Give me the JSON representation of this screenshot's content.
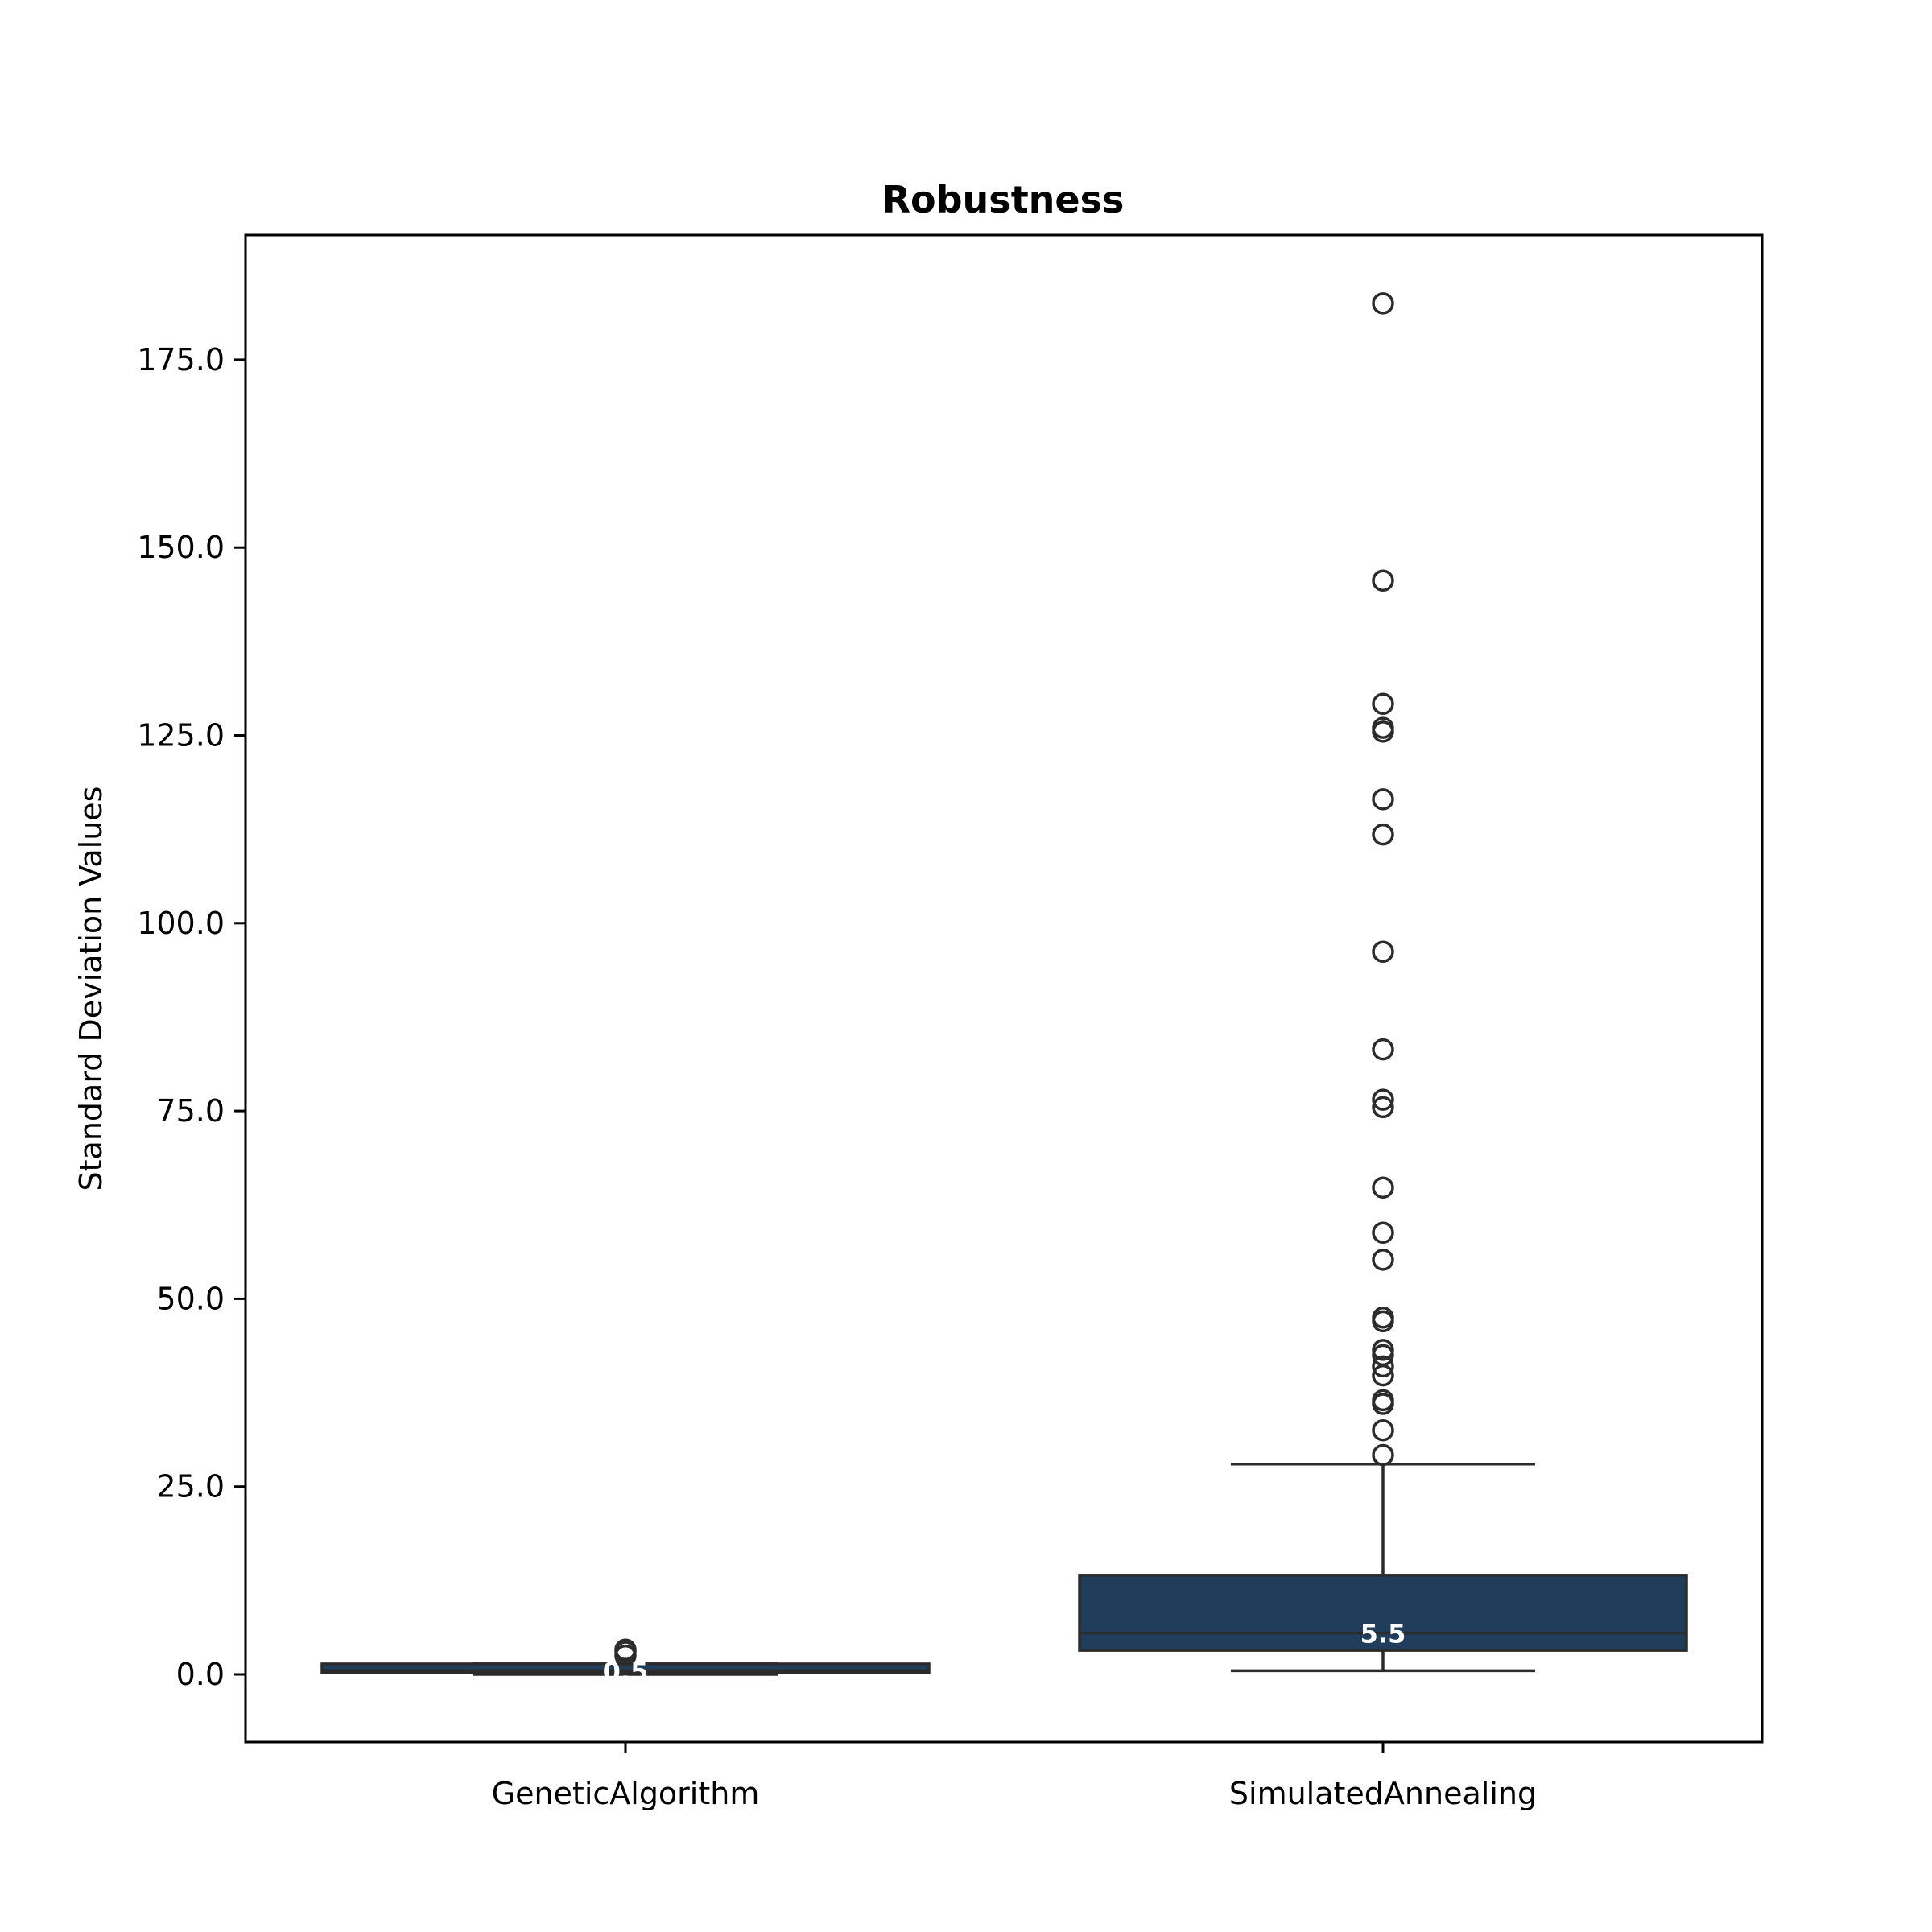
{
  "chart_data": {
    "type": "box",
    "title": "Robustness",
    "xlabel": "",
    "ylabel": "Standard Deviation Values",
    "ylim": [
      -9,
      191
    ],
    "y_ticks": [
      0,
      25,
      50,
      75,
      100,
      125,
      150,
      175
    ],
    "y_tick_labels": [
      "0.0",
      "25.0",
      "50.0",
      "75.0",
      "100.0",
      "125.0",
      "150.0",
      "175.0"
    ],
    "categories": [
      "GeneticAlgorithm",
      "SimulatedAnnealing"
    ],
    "grid": false,
    "legend": "none",
    "box_color": "#203e5c",
    "line_color": "#2b2b2b",
    "boxes": [
      {
        "category": "GeneticAlgorithm",
        "whisker_low": 0.0,
        "q1": 0.2,
        "median": 0.5,
        "q3": 1.4,
        "whisker_high": 1.4,
        "median_label": "0.5",
        "outliers": [
          2.5,
          3.0,
          3.3
        ]
      },
      {
        "category": "SimulatedAnnealing",
        "whisker_low": 0.5,
        "q1": 3.2,
        "median": 5.5,
        "q3": 13.2,
        "whisker_high": 28.0,
        "median_label": "5.5",
        "outliers": [
          29.2,
          32.5,
          36.0,
          36.5,
          39.8,
          41.0,
          42.5,
          43.2,
          47.0,
          47.5,
          55.2,
          58.8,
          64.8,
          75.5,
          76.5,
          83.2,
          96.2,
          111.8,
          116.5,
          125.5,
          126.0,
          129.2,
          145.6,
          182.5
        ]
      }
    ]
  }
}
